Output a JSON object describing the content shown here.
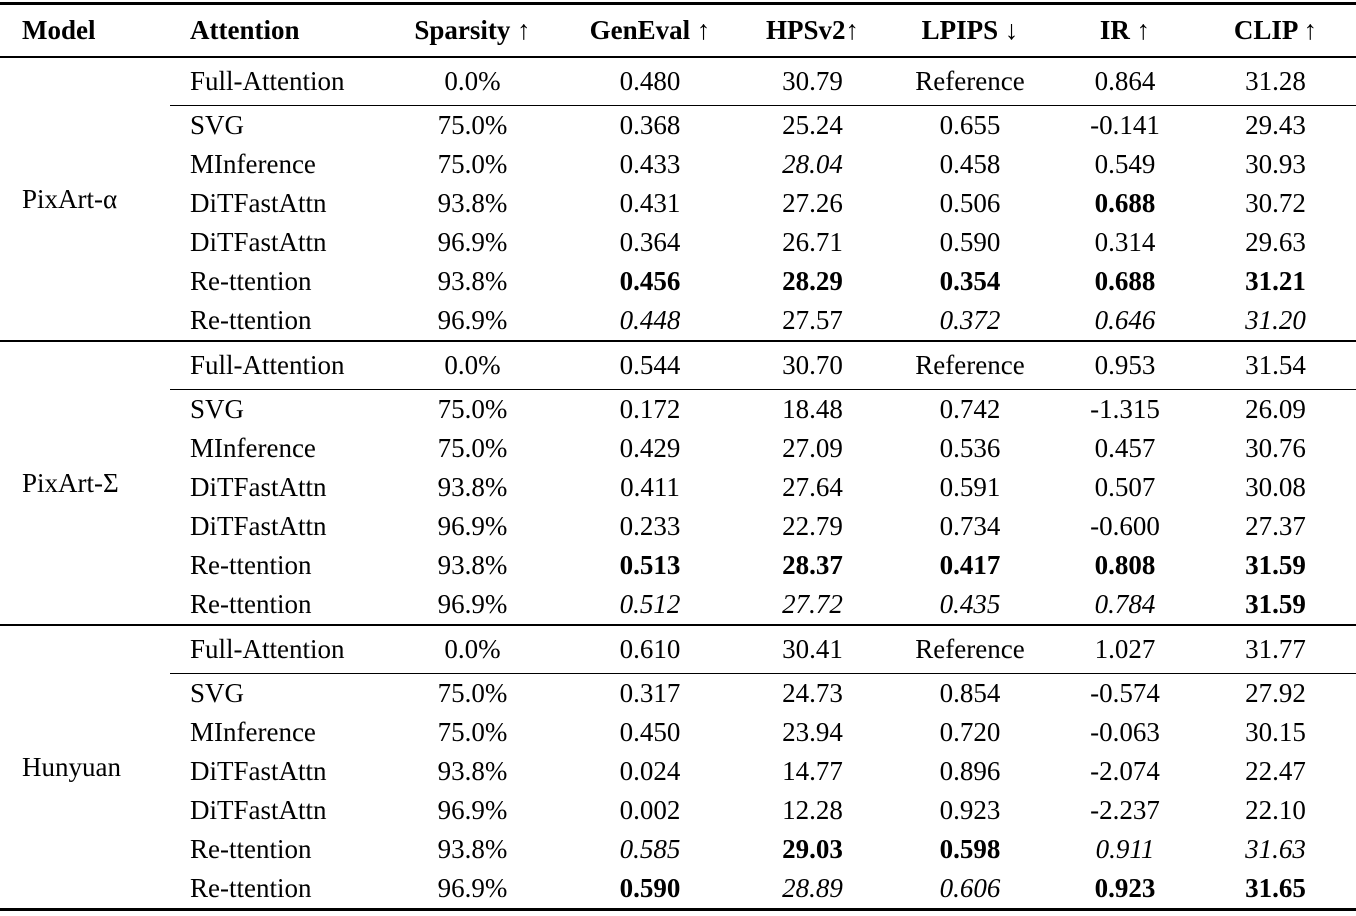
{
  "table": {
    "headers": {
      "model": "Model",
      "attention": "Attention",
      "sparsity": "Sparsity ↑",
      "geneval": "GenEval ↑",
      "hpsv2": "HPSv2↑",
      "lpips": "LPIPS ↓",
      "ir": "IR ↑",
      "clip": "CLIP ↑"
    },
    "groups": [
      {
        "model": "PixArt-α",
        "rows": [
          {
            "attention": "Full-Attention",
            "cells": [
              [
                "0.0%"
              ],
              [
                "0.480"
              ],
              [
                "30.79"
              ],
              [
                "Reference"
              ],
              [
                "0.864"
              ],
              [
                "31.28"
              ]
            ]
          },
          {
            "attention": "SVG",
            "cells": [
              [
                "75.0%"
              ],
              [
                "0.368"
              ],
              [
                "25.24"
              ],
              [
                "0.655"
              ],
              [
                "-0.141"
              ],
              [
                "29.43"
              ]
            ]
          },
          {
            "attention": "MInference",
            "cells": [
              [
                "75.0%"
              ],
              [
                "0.433"
              ],
              [
                "28.04",
                "i"
              ],
              [
                "0.458"
              ],
              [
                "0.549"
              ],
              [
                "30.93"
              ]
            ]
          },
          {
            "attention": "DiTFastAttn",
            "cells": [
              [
                "93.8%"
              ],
              [
                "0.431"
              ],
              [
                "27.26"
              ],
              [
                "0.506"
              ],
              [
                "0.688",
                "b"
              ],
              [
                "30.72"
              ]
            ]
          },
          {
            "attention": "DiTFastAttn",
            "cells": [
              [
                "96.9%"
              ],
              [
                "0.364"
              ],
              [
                "26.71"
              ],
              [
                "0.590"
              ],
              [
                "0.314"
              ],
              [
                "29.63"
              ]
            ]
          },
          {
            "attention": "Re-ttention",
            "cells": [
              [
                "93.8%"
              ],
              [
                "0.456",
                "b"
              ],
              [
                "28.29",
                "b"
              ],
              [
                "0.354",
                "b"
              ],
              [
                "0.688",
                "b"
              ],
              [
                "31.21",
                "b"
              ]
            ]
          },
          {
            "attention": "Re-ttention",
            "cells": [
              [
                "96.9%"
              ],
              [
                "0.448",
                "i"
              ],
              [
                "27.57"
              ],
              [
                "0.372",
                "i"
              ],
              [
                "0.646",
                "i"
              ],
              [
                "31.20",
                "i"
              ]
            ]
          }
        ]
      },
      {
        "model": "PixArt-Σ",
        "rows": [
          {
            "attention": "Full-Attention",
            "cells": [
              [
                "0.0%"
              ],
              [
                "0.544"
              ],
              [
                "30.70"
              ],
              [
                "Reference"
              ],
              [
                "0.953"
              ],
              [
                "31.54"
              ]
            ]
          },
          {
            "attention": "SVG",
            "cells": [
              [
                "75.0%"
              ],
              [
                "0.172"
              ],
              [
                "18.48"
              ],
              [
                "0.742"
              ],
              [
                "-1.315"
              ],
              [
                "26.09"
              ]
            ]
          },
          {
            "attention": "MInference",
            "cells": [
              [
                "75.0%"
              ],
              [
                "0.429"
              ],
              [
                "27.09"
              ],
              [
                "0.536"
              ],
              [
                "0.457"
              ],
              [
                "30.76"
              ]
            ]
          },
          {
            "attention": "DiTFastAttn",
            "cells": [
              [
                "93.8%"
              ],
              [
                "0.411"
              ],
              [
                "27.64"
              ],
              [
                "0.591"
              ],
              [
                "0.507"
              ],
              [
                "30.08"
              ]
            ]
          },
          {
            "attention": "DiTFastAttn",
            "cells": [
              [
                "96.9%"
              ],
              [
                "0.233"
              ],
              [
                "22.79"
              ],
              [
                "0.734"
              ],
              [
                "-0.600"
              ],
              [
                "27.37"
              ]
            ]
          },
          {
            "attention": "Re-ttention",
            "cells": [
              [
                "93.8%"
              ],
              [
                "0.513",
                "b"
              ],
              [
                "28.37",
                "b"
              ],
              [
                "0.417",
                "b"
              ],
              [
                "0.808",
                "b"
              ],
              [
                "31.59",
                "b"
              ]
            ]
          },
          {
            "attention": "Re-ttention",
            "cells": [
              [
                "96.9%"
              ],
              [
                "0.512",
                "i"
              ],
              [
                "27.72",
                "i"
              ],
              [
                "0.435",
                "i"
              ],
              [
                "0.784",
                "i"
              ],
              [
                "31.59",
                "b"
              ]
            ]
          }
        ]
      },
      {
        "model": "Hunyuan",
        "rows": [
          {
            "attention": "Full-Attention",
            "cells": [
              [
                "0.0%"
              ],
              [
                "0.610"
              ],
              [
                "30.41"
              ],
              [
                "Reference"
              ],
              [
                "1.027"
              ],
              [
                "31.77"
              ]
            ]
          },
          {
            "attention": "SVG",
            "cells": [
              [
                "75.0%"
              ],
              [
                "0.317"
              ],
              [
                "24.73"
              ],
              [
                "0.854"
              ],
              [
                "-0.574"
              ],
              [
                "27.92"
              ]
            ]
          },
          {
            "attention": "MInference",
            "cells": [
              [
                "75.0%"
              ],
              [
                "0.450"
              ],
              [
                "23.94"
              ],
              [
                "0.720"
              ],
              [
                "-0.063"
              ],
              [
                "30.15"
              ]
            ]
          },
          {
            "attention": "DiTFastAttn",
            "cells": [
              [
                "93.8%"
              ],
              [
                "0.024"
              ],
              [
                "14.77"
              ],
              [
                "0.896"
              ],
              [
                "-2.074"
              ],
              [
                "22.47"
              ]
            ]
          },
          {
            "attention": "DiTFastAttn",
            "cells": [
              [
                "96.9%"
              ],
              [
                "0.002"
              ],
              [
                "12.28"
              ],
              [
                "0.923"
              ],
              [
                "-2.237"
              ],
              [
                "22.10"
              ]
            ]
          },
          {
            "attention": "Re-ttention",
            "cells": [
              [
                "93.8%"
              ],
              [
                "0.585",
                "i"
              ],
              [
                "29.03",
                "b"
              ],
              [
                "0.598",
                "b"
              ],
              [
                "0.911",
                "i"
              ],
              [
                "31.63",
                "i"
              ]
            ]
          },
          {
            "attention": "Re-ttention",
            "cells": [
              [
                "96.9%"
              ],
              [
                "0.590",
                "b"
              ],
              [
                "28.89",
                "i"
              ],
              [
                "0.606",
                "i"
              ],
              [
                "0.923",
                "b"
              ],
              [
                "31.65",
                "b"
              ]
            ]
          }
        ]
      }
    ]
  }
}
